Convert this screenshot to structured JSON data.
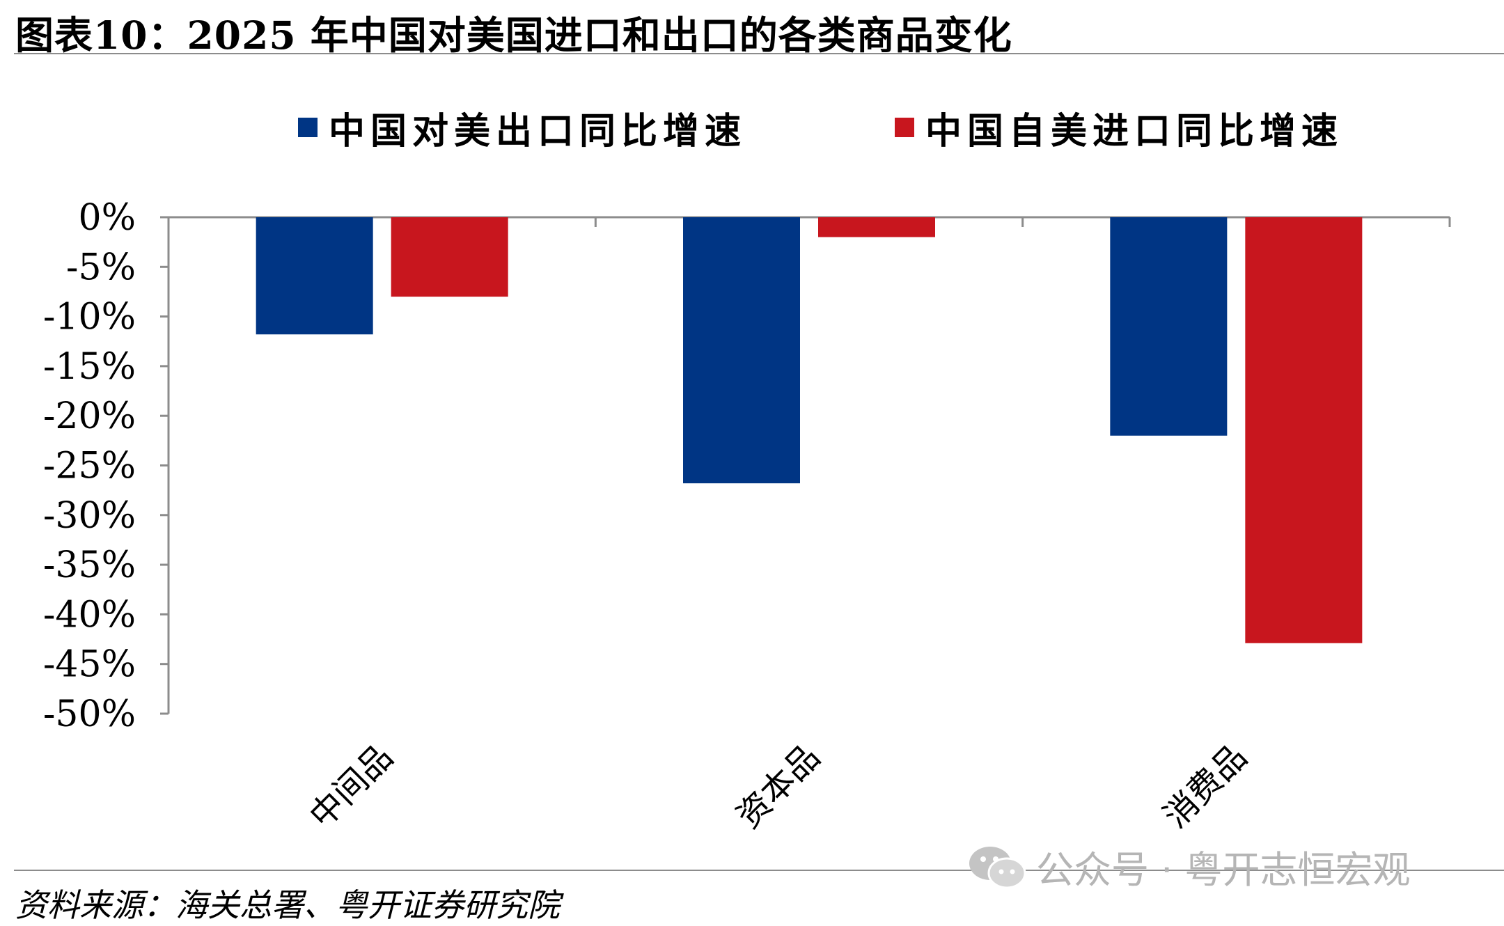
{
  "header": {
    "title": "图表10：2025 年中国对美国进口和出口的各类商品变化"
  },
  "footer": {
    "source": "资料来源：海关总署、粤开证券研究院"
  },
  "watermark": {
    "text": "公众号 · 粤开志恒宏观",
    "icon": "wechat-icon"
  },
  "colors": {
    "export": "#003584",
    "import": "#c8161e",
    "axis": "#8c8c8c"
  },
  "chart_data": {
    "type": "bar",
    "title": "",
    "xlabel": "",
    "ylabel": "",
    "categories": [
      "中间品",
      "资本品",
      "消费品"
    ],
    "series": [
      {
        "name": "中国对美出口同比增速",
        "values": [
          -11.8,
          -26.8,
          -22.0
        ]
      },
      {
        "name": "中国自美进口同比增速",
        "values": [
          -8.0,
          -2.0,
          -42.9
        ]
      }
    ],
    "ylim": [
      -50,
      0
    ],
    "yticks": [
      "0%",
      "-5%",
      "-10%",
      "-15%",
      "-20%",
      "-25%",
      "-30%",
      "-35%",
      "-40%",
      "-45%",
      "-50%"
    ],
    "legend_position": "top",
    "grid": false
  }
}
